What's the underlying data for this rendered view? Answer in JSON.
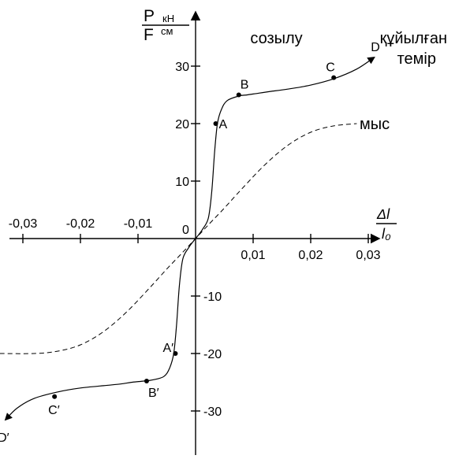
{
  "chart_data": {
    "type": "line",
    "y_axis_label": {
      "numerator": "P",
      "numerator_unit": "кН",
      "denominator": "F",
      "denominator_unit": "см"
    },
    "x_axis_label": {
      "numerator": "Δl",
      "denominator": "l₀"
    },
    "origin_label": "0",
    "xlim": [
      -0.035,
      0.035
    ],
    "ylim": [
      -40,
      40
    ],
    "x_ticks": [
      -0.03,
      -0.02,
      -0.01,
      0.01,
      0.02,
      0.03
    ],
    "x_tick_labels": [
      "-0,03",
      "-0,02",
      "-0,01",
      "0,01",
      "0,02",
      "0,03"
    ],
    "y_ticks": [
      -30,
      -20,
      -10,
      10,
      20,
      30
    ],
    "y_tick_labels": [
      "-30",
      "-20",
      "-10",
      "10",
      "20",
      "30"
    ],
    "annotations": [
      {
        "text": "созылу",
        "x": 0.0095,
        "y": 34
      }
    ],
    "series": [
      {
        "name": "құйылған темір",
        "style": "solid",
        "color": "#000000",
        "arrow_at_ends": true,
        "label_position": {
          "x": 0.032,
          "y": 34
        },
        "x": [
          -0.033,
          -0.031,
          -0.028,
          -0.024,
          -0.02,
          -0.016,
          -0.013,
          -0.011,
          -0.009,
          -0.0075,
          -0.0055,
          -0.0045,
          -0.0038,
          -0.0033,
          -0.0028,
          -0.0022,
          -0.0012,
          -0.0004,
          0.0,
          0.0004,
          0.0012,
          0.0022,
          0.0028,
          0.0033,
          0.0038,
          0.0045,
          0.0055,
          0.0075,
          0.009,
          0.011,
          0.013,
          0.016,
          0.02,
          0.024,
          0.028,
          0.031
        ],
        "y": [
          -31.5,
          -29.5,
          -27.8,
          -26.7,
          -26.0,
          -25.6,
          -25.3,
          -25.0,
          -24.8,
          -24.6,
          -24.0,
          -22.5,
          -20.0,
          -15.0,
          -8.0,
          -3.5,
          -1.6,
          -0.5,
          0.0,
          0.5,
          1.6,
          3.5,
          8.0,
          15.0,
          20.0,
          22.5,
          24.0,
          24.8,
          25.0,
          25.3,
          25.6,
          26.0,
          26.7,
          27.8,
          29.5,
          31.5
        ],
        "points": [
          {
            "label": "A",
            "x": 0.0035,
            "y": 20
          },
          {
            "label": "B",
            "x": 0.0075,
            "y": 25
          },
          {
            "label": "C",
            "x": 0.024,
            "y": 28
          },
          {
            "label": "D",
            "x": 0.031,
            "y": 31.5
          },
          {
            "label": "A′",
            "x": -0.0035,
            "y": -20
          },
          {
            "label": "B′",
            "x": -0.0085,
            "y": -24.8
          },
          {
            "label": "C′",
            "x": -0.0245,
            "y": -27.5
          },
          {
            "label": "D′",
            "x": -0.033,
            "y": -31.5
          }
        ]
      },
      {
        "name": "мыс",
        "style": "dashed",
        "color": "#000000",
        "label_position": {
          "x": 0.0285,
          "y": 20
        },
        "x": [
          -0.034,
          -0.028,
          -0.024,
          -0.02,
          -0.016,
          -0.012,
          -0.008,
          -0.005,
          -0.003,
          -0.0015,
          0.0,
          0.0015,
          0.003,
          0.005,
          0.008,
          0.012,
          0.016,
          0.02,
          0.024,
          0.028
        ],
        "y": [
          -20.0,
          -20.0,
          -19.6,
          -18.5,
          -16.2,
          -12.8,
          -8.6,
          -5.3,
          -3.2,
          -1.6,
          0.0,
          1.6,
          3.2,
          5.3,
          8.6,
          12.8,
          16.2,
          18.5,
          19.6,
          20.0
        ]
      }
    ]
  }
}
